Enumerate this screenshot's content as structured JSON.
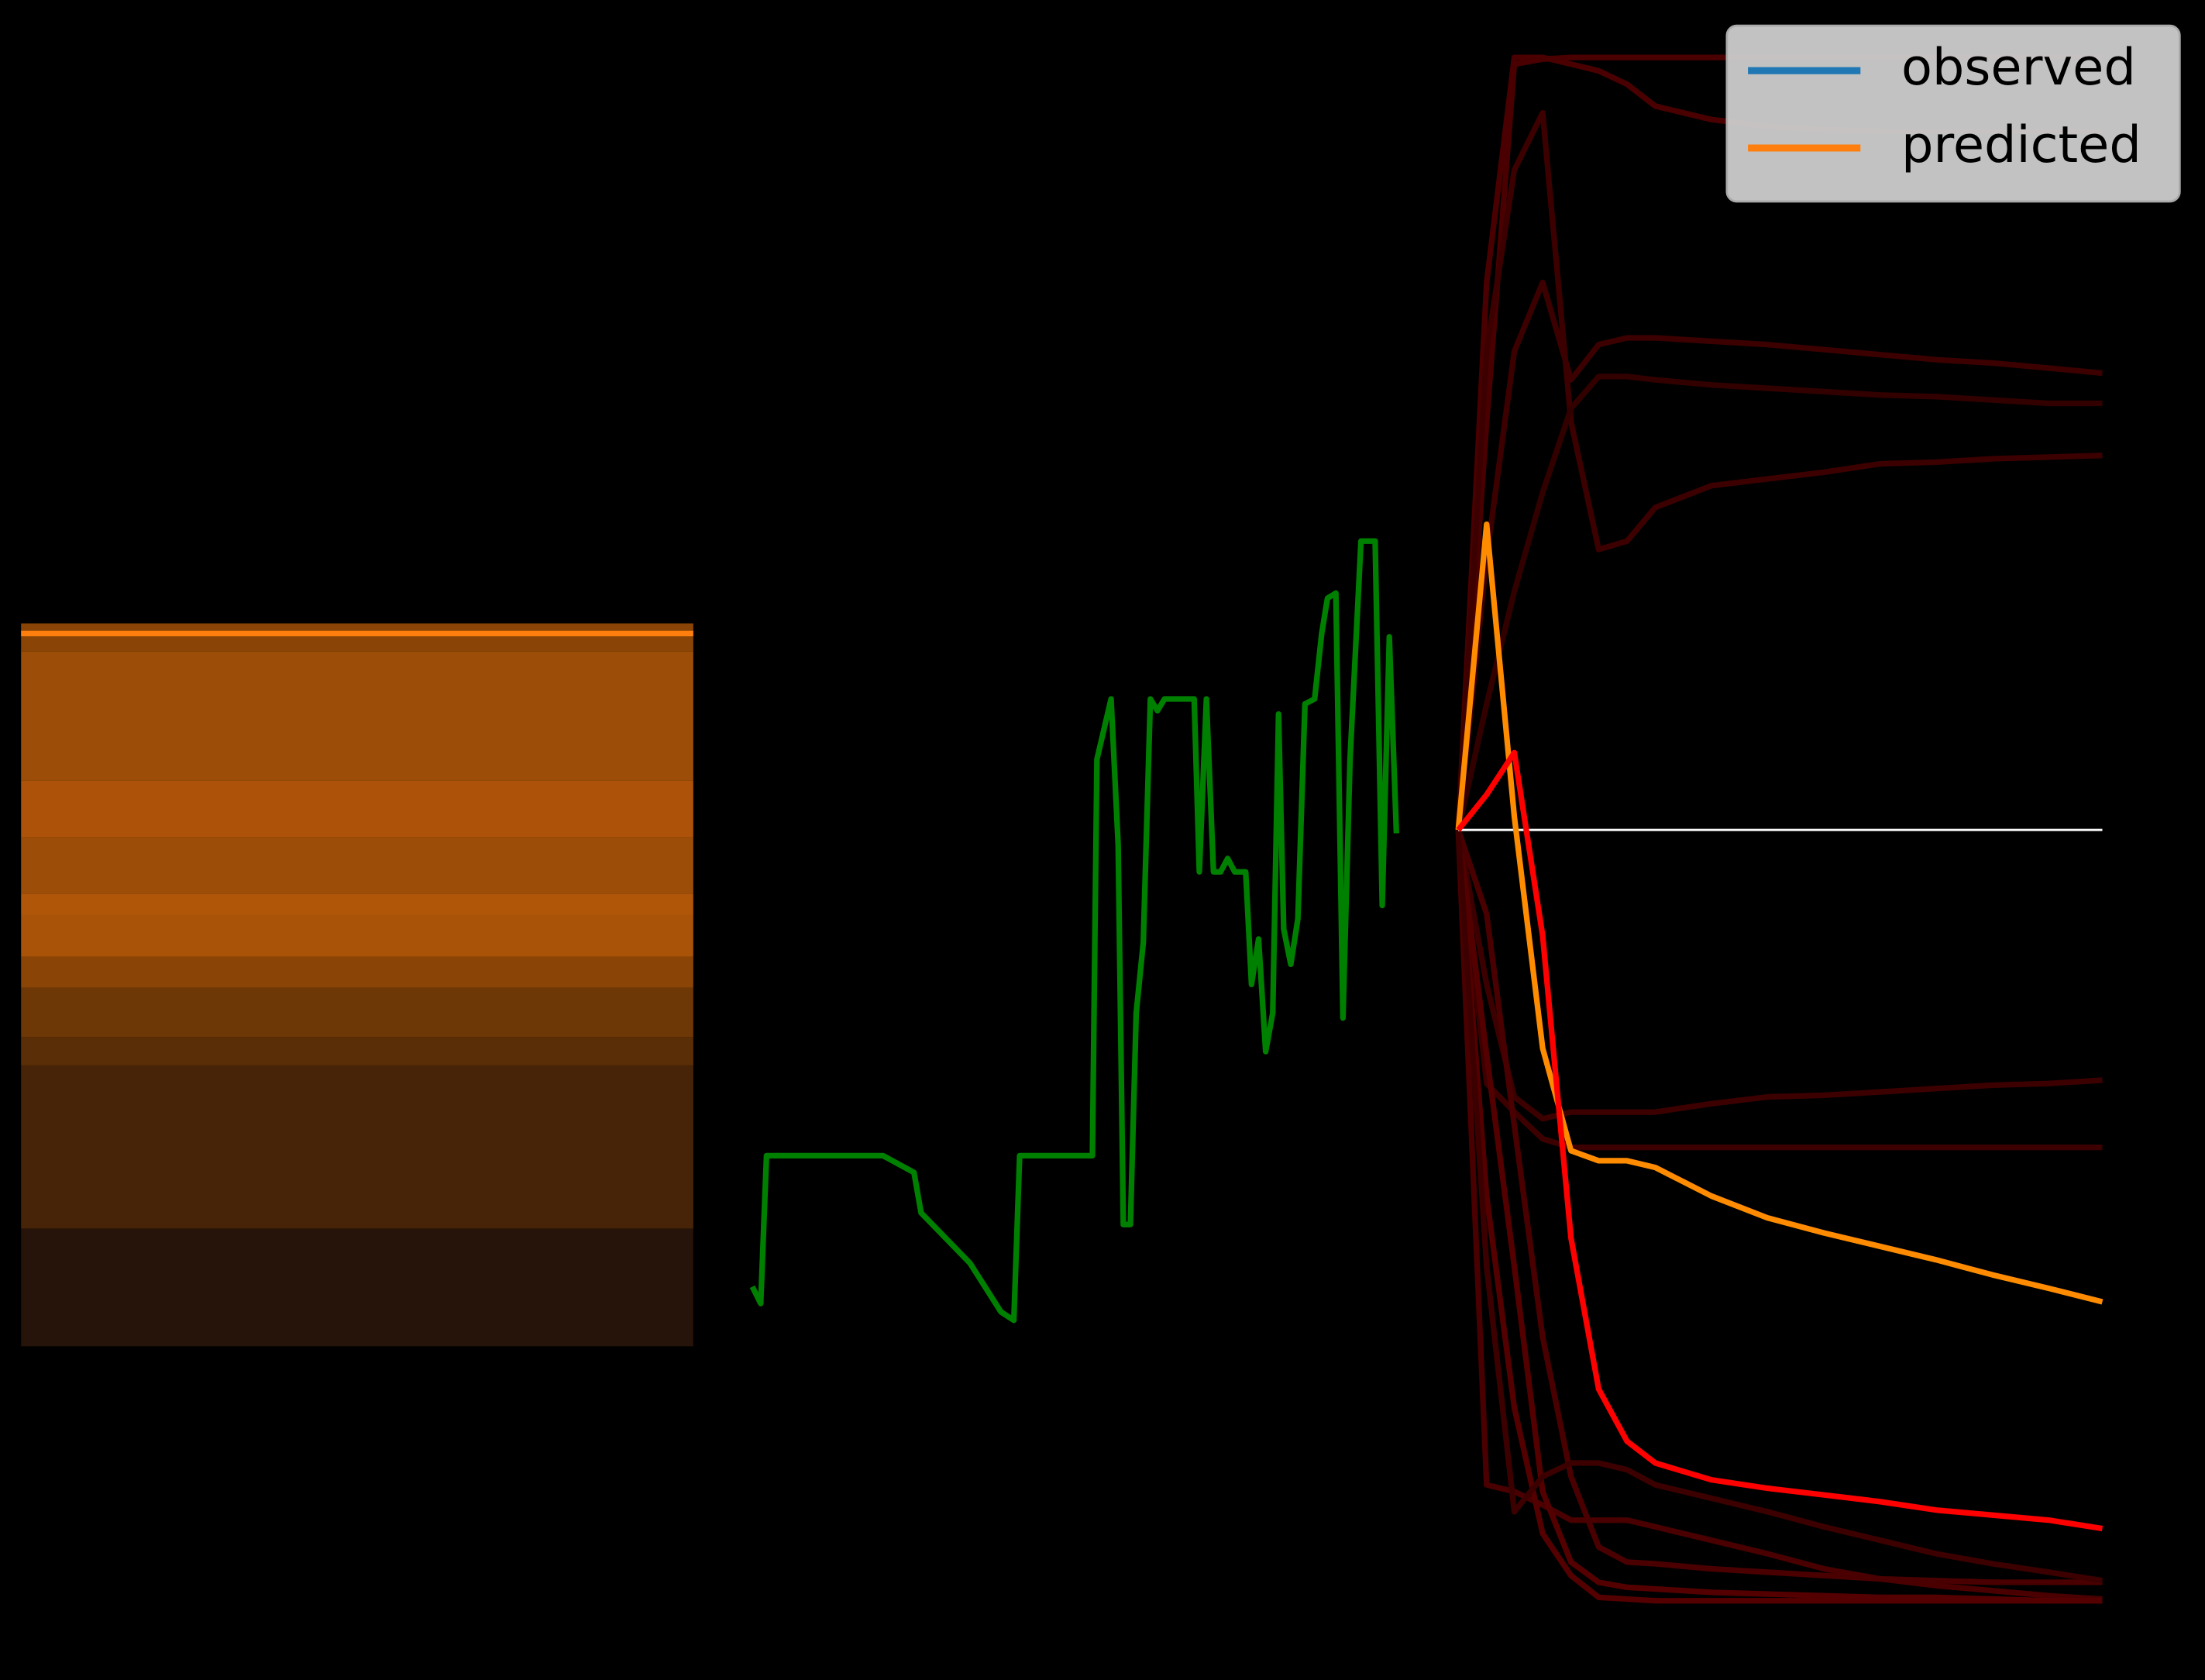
{
  "chart_data": [
    {
      "type": "area",
      "stacked": true,
      "x": [
        0,
        100
      ],
      "ylim": [
        0,
        100
      ],
      "series": [
        {
          "color": "#26130a",
          "values": [
            16.3,
            16.3
          ]
        },
        {
          "color": "#472407",
          "values": [
            22.6,
            22.6
          ]
        },
        {
          "color": "#5a2e06",
          "values": [
            3.9,
            3.9
          ]
        },
        {
          "color": "#6e3706",
          "values": [
            6.8,
            6.8
          ]
        },
        {
          "color": "#8a4506",
          "values": [
            4.3,
            4.3
          ]
        },
        {
          "color": "#a85308",
          "values": [
            5.8,
            5.8
          ]
        },
        {
          "color": "#b05609",
          "values": [
            2.9,
            2.9
          ]
        },
        {
          "color": "#9c4d07",
          "values": [
            7.8,
            7.8
          ]
        },
        {
          "color": "#ac5309",
          "values": [
            7.8,
            7.8
          ]
        },
        {
          "color": "#9c4d07",
          "values": [
            17.9,
            17.9
          ]
        },
        {
          "color": "#8a4506",
          "values": [
            3.9,
            3.9
          ]
        }
      ],
      "top_line": {
        "color": "#ff7f0e",
        "values": [
          98.6,
          98.6
        ]
      }
    },
    {
      "type": "line",
      "xlim": [
        0,
        100
      ],
      "ylim": [
        0,
        100
      ],
      "series": [
        {
          "color": "#008000",
          "linewidth": 4,
          "x": [
            0,
            1.3,
            2.2,
            20.3,
            25.1,
            26.2,
            33.8,
            38.6,
            40.6,
            41.5,
            52.8,
            53.5,
            55.7,
            56.8,
            57.6,
            58.7,
            59.6,
            60.7,
            61.8,
            62.9,
            64.0,
            68.6,
            69.4,
            70.5,
            71.6,
            72.7,
            73.8,
            74.9,
            76.6,
            77.5,
            78.6,
            79.7,
            80.8,
            81.7,
            82.5,
            83.6,
            84.7,
            85.8,
            87.3,
            88.4,
            89.3,
            90.6,
            91.7,
            92.8,
            94.5,
            96.7,
            97.8,
            98.9,
            100
          ],
          "values": [
            23.4,
            22.4,
            31.2,
            31.2,
            30.2,
            27.8,
            24.8,
            21.9,
            21.4,
            31.2,
            31.2,
            54.8,
            58.4,
            49.7,
            27.1,
            27.1,
            39.7,
            43.9,
            58.4,
            57.7,
            58.4,
            58.4,
            48.1,
            58.4,
            48.1,
            48.1,
            48.9,
            48.1,
            48.1,
            41.4,
            44.1,
            37.4,
            39.7,
            57.5,
            44.7,
            42.6,
            45.3,
            58.1,
            58.4,
            62.3,
            64.4,
            64.7,
            39.4,
            54.8,
            67.8,
            67.8,
            46.1,
            62.1,
            50.4
          ]
        }
      ]
    },
    {
      "type": "line",
      "xlim": [
        0,
        100
      ],
      "ylim": [
        0,
        100
      ],
      "x": [
        0,
        4.4,
        8.7,
        13.1,
        17.5,
        21.8,
        26.2,
        30.6,
        39.3,
        48.0,
        56.8,
        65.5,
        74.2,
        83.0,
        91.7,
        100
      ],
      "series": [
        {
          "color": "#4a0000",
          "linewidth": 4,
          "values": [
            50.6,
            83.2,
            96.6,
            96.6,
            96.2,
            95.8,
            95.0,
            93.7,
            92.9,
            92.5,
            92.3,
            92.2,
            92.2,
            92.2,
            92.2,
            92.2
          ]
        },
        {
          "color": "#4a0000",
          "linewidth": 4,
          "values": [
            50.6,
            74.9,
            96.2,
            96.5,
            96.6,
            96.6,
            96.6,
            96.6,
            96.6,
            96.6,
            96.6,
            96.6,
            96.6,
            96.6,
            96.6,
            96.6
          ]
        },
        {
          "color": "#3d0000",
          "linewidth": 4,
          "values": [
            50.6,
            79.1,
            89.9,
            93.3,
            74.9,
            67.3,
            67.8,
            69.8,
            71.1,
            71.5,
            71.9,
            72.4,
            72.5,
            72.7,
            72.8,
            72.9
          ]
        },
        {
          "color": "#3d0000",
          "linewidth": 4,
          "values": [
            50.6,
            66.8,
            79.1,
            83.2,
            77.4,
            79.5,
            79.9,
            79.9,
            79.7,
            79.5,
            79.2,
            78.9,
            78.6,
            78.4,
            78.1,
            77.8
          ]
        },
        {
          "color": "#330000",
          "linewidth": 4,
          "values": [
            50.6,
            58.1,
            64.8,
            70.7,
            75.7,
            77.6,
            77.6,
            77.4,
            77.1,
            76.9,
            76.7,
            76.5,
            76.4,
            76.2,
            76.0,
            76.0
          ]
        },
        {
          "color": "#3d0000",
          "linewidth": 4,
          "values": [
            50.6,
            35.5,
            33.8,
            32.2,
            31.7,
            31.7,
            31.7,
            31.7,
            31.7,
            31.7,
            31.7,
            31.7,
            31.7,
            31.7,
            31.7,
            31.7
          ]
        },
        {
          "color": "#3d0000",
          "linewidth": 4,
          "values": [
            50.6,
            41.4,
            34.7,
            33.4,
            33.8,
            33.8,
            33.8,
            33.8,
            34.3,
            34.7,
            34.8,
            35.0,
            35.2,
            35.4,
            35.5,
            35.7
          ]
        },
        {
          "color": "#4a0000",
          "linewidth": 4,
          "values": [
            50.6,
            11.6,
            11.2,
            10.4,
            9.5,
            9.5,
            9.5,
            9.1,
            8.3,
            7.5,
            6.6,
            6.0,
            5.6,
            5.3,
            5.0,
            4.8
          ]
        },
        {
          "color": "#550000",
          "linewidth": 4,
          "values": [
            50.6,
            37.2,
            24.6,
            11.2,
            7.0,
            5.8,
            5.5,
            5.4,
            5.2,
            5.1,
            5.0,
            4.9,
            4.9,
            4.8,
            4.7,
            4.7
          ]
        },
        {
          "color": "#550000",
          "linewidth": 4,
          "values": [
            50.6,
            28.8,
            16.2,
            8.7,
            6.2,
            4.9,
            4.8,
            4.7,
            4.7,
            4.7,
            4.7,
            4.7,
            4.7,
            4.7,
            4.7,
            4.7
          ]
        },
        {
          "color": "#4a0000",
          "linewidth": 4,
          "values": [
            50.6,
            45.6,
            33.0,
            20.4,
            12.1,
            7.9,
            7.0,
            6.9,
            6.6,
            6.4,
            6.2,
            6.0,
            5.9,
            5.8,
            5.8,
            5.8
          ]
        },
        {
          "color": "#3d0000",
          "linewidth": 4,
          "values": [
            50.6,
            24.6,
            10.0,
            12.1,
            12.9,
            12.9,
            12.5,
            11.6,
            10.8,
            10.0,
            9.1,
            8.3,
            7.5,
            6.9,
            6.4,
            5.9
          ]
        },
        {
          "color": "#ffffff",
          "linewidth": 1.5,
          "values": [
            50.6,
            50.6,
            50.6,
            50.6,
            50.6,
            50.6,
            50.6,
            50.6,
            50.6,
            50.6,
            50.6,
            50.6,
            50.6,
            50.6,
            50.6,
            50.6
          ]
        },
        {
          "color": "#ff8c00",
          "linewidth": 4,
          "values": [
            50.6,
            68.8,
            51.4,
            37.6,
            31.5,
            30.9,
            30.9,
            30.5,
            28.8,
            27.5,
            26.6,
            25.8,
            25.0,
            24.1,
            23.3,
            22.5
          ]
        },
        {
          "color": "#ff0000",
          "linewidth": 4,
          "values": [
            50.6,
            52.7,
            55.2,
            44.3,
            26.3,
            17.3,
            14.2,
            12.9,
            11.9,
            11.4,
            11.0,
            10.6,
            10.1,
            9.8,
            9.5,
            9.0
          ]
        }
      ],
      "legend": {
        "loc": "upper right",
        "entries": [
          {
            "name": "observed",
            "color": "#1f77b4"
          },
          {
            "name": "predicted",
            "color": "#ff7f0e"
          }
        ]
      }
    }
  ]
}
